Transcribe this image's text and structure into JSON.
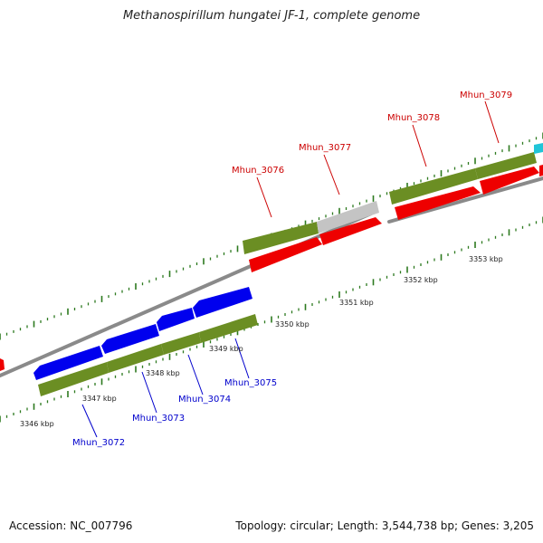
{
  "title": "Methanospirillum hungatei JF-1, complete genome",
  "footer": {
    "accession": "Accession: NC_007796",
    "topology": "Topology: circular; Length: 3,544,738 bp; Genes: 3,205"
  },
  "colors": {
    "forward_gene": "#ff0000",
    "reverse_gene": "#0000ff",
    "cds": "#6b8e23",
    "pseudo": "#bdbdbd",
    "backbone": "#888888",
    "tick": "#2d7a1f",
    "red_label": "#cc0000",
    "blue_label": "#0000cc"
  },
  "kbp_labels": [
    "3346 kbp",
    "3347 kbp",
    "3348 kbp",
    "3349 kbp",
    "3350 kbp",
    "3351 kbp",
    "3352 kbp",
    "3353 kbp"
  ],
  "gene_labels": {
    "top": [
      "Mhun_3076",
      "Mhun_3077",
      "Mhun_3078",
      "Mhun_3079"
    ],
    "bottom": [
      "Mhun_3072",
      "Mhun_3073",
      "Mhun_3074",
      "Mhun_3075"
    ]
  }
}
